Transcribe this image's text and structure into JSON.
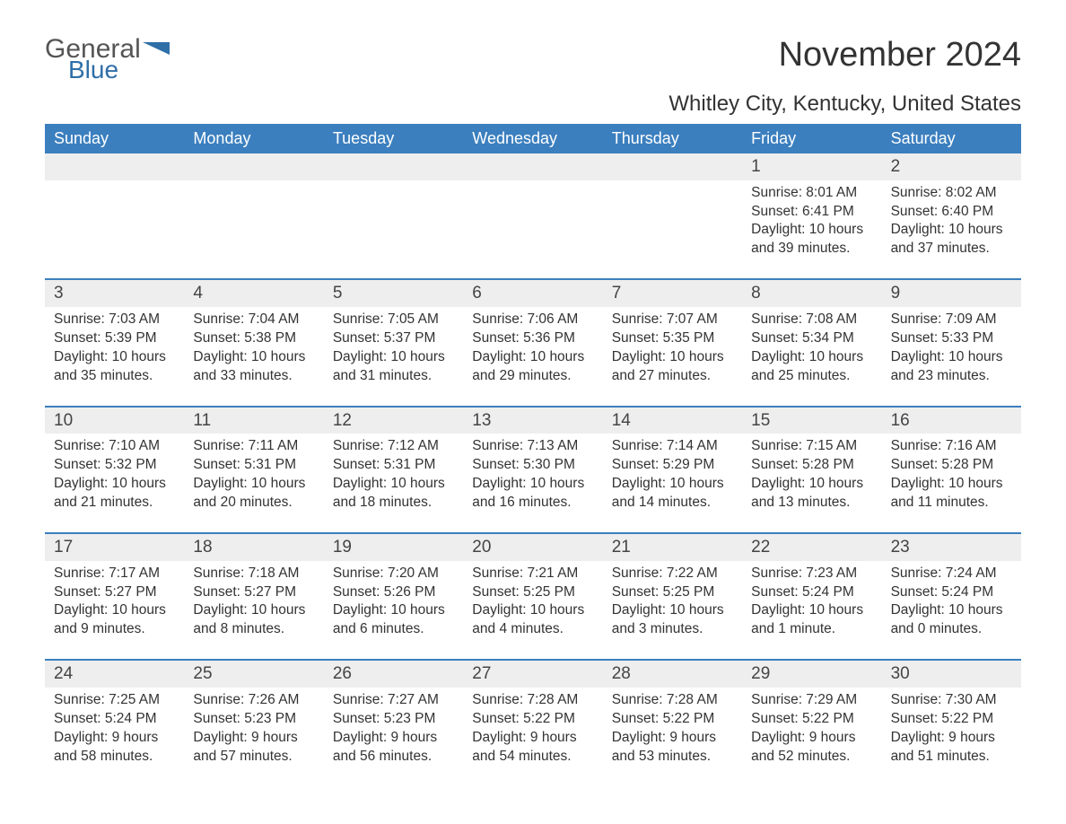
{
  "logo": {
    "word1": "General",
    "word2": "Blue"
  },
  "title": "November 2024",
  "location": "Whitley City, Kentucky, United States",
  "colors": {
    "header_bg": "#3b7fbf",
    "header_text": "#ffffff",
    "brand_blue": "#2f6fa8",
    "text": "#333333",
    "daynum_bg": "#eeeeee",
    "rule": "#3b7fbf"
  },
  "day_headers": [
    "Sunday",
    "Monday",
    "Tuesday",
    "Wednesday",
    "Thursday",
    "Friday",
    "Saturday"
  ],
  "leading_blanks": 5,
  "days": [
    {
      "n": "1",
      "sunrise": "Sunrise: 8:01 AM",
      "sunset": "Sunset: 6:41 PM",
      "daylight1": "Daylight: 10 hours",
      "daylight2": "and 39 minutes."
    },
    {
      "n": "2",
      "sunrise": "Sunrise: 8:02 AM",
      "sunset": "Sunset: 6:40 PM",
      "daylight1": "Daylight: 10 hours",
      "daylight2": "and 37 minutes."
    },
    {
      "n": "3",
      "sunrise": "Sunrise: 7:03 AM",
      "sunset": "Sunset: 5:39 PM",
      "daylight1": "Daylight: 10 hours",
      "daylight2": "and 35 minutes."
    },
    {
      "n": "4",
      "sunrise": "Sunrise: 7:04 AM",
      "sunset": "Sunset: 5:38 PM",
      "daylight1": "Daylight: 10 hours",
      "daylight2": "and 33 minutes."
    },
    {
      "n": "5",
      "sunrise": "Sunrise: 7:05 AM",
      "sunset": "Sunset: 5:37 PM",
      "daylight1": "Daylight: 10 hours",
      "daylight2": "and 31 minutes."
    },
    {
      "n": "6",
      "sunrise": "Sunrise: 7:06 AM",
      "sunset": "Sunset: 5:36 PM",
      "daylight1": "Daylight: 10 hours",
      "daylight2": "and 29 minutes."
    },
    {
      "n": "7",
      "sunrise": "Sunrise: 7:07 AM",
      "sunset": "Sunset: 5:35 PM",
      "daylight1": "Daylight: 10 hours",
      "daylight2": "and 27 minutes."
    },
    {
      "n": "8",
      "sunrise": "Sunrise: 7:08 AM",
      "sunset": "Sunset: 5:34 PM",
      "daylight1": "Daylight: 10 hours",
      "daylight2": "and 25 minutes."
    },
    {
      "n": "9",
      "sunrise": "Sunrise: 7:09 AM",
      "sunset": "Sunset: 5:33 PM",
      "daylight1": "Daylight: 10 hours",
      "daylight2": "and 23 minutes."
    },
    {
      "n": "10",
      "sunrise": "Sunrise: 7:10 AM",
      "sunset": "Sunset: 5:32 PM",
      "daylight1": "Daylight: 10 hours",
      "daylight2": "and 21 minutes."
    },
    {
      "n": "11",
      "sunrise": "Sunrise: 7:11 AM",
      "sunset": "Sunset: 5:31 PM",
      "daylight1": "Daylight: 10 hours",
      "daylight2": "and 20 minutes."
    },
    {
      "n": "12",
      "sunrise": "Sunrise: 7:12 AM",
      "sunset": "Sunset: 5:31 PM",
      "daylight1": "Daylight: 10 hours",
      "daylight2": "and 18 minutes."
    },
    {
      "n": "13",
      "sunrise": "Sunrise: 7:13 AM",
      "sunset": "Sunset: 5:30 PM",
      "daylight1": "Daylight: 10 hours",
      "daylight2": "and 16 minutes."
    },
    {
      "n": "14",
      "sunrise": "Sunrise: 7:14 AM",
      "sunset": "Sunset: 5:29 PM",
      "daylight1": "Daylight: 10 hours",
      "daylight2": "and 14 minutes."
    },
    {
      "n": "15",
      "sunrise": "Sunrise: 7:15 AM",
      "sunset": "Sunset: 5:28 PM",
      "daylight1": "Daylight: 10 hours",
      "daylight2": "and 13 minutes."
    },
    {
      "n": "16",
      "sunrise": "Sunrise: 7:16 AM",
      "sunset": "Sunset: 5:28 PM",
      "daylight1": "Daylight: 10 hours",
      "daylight2": "and 11 minutes."
    },
    {
      "n": "17",
      "sunrise": "Sunrise: 7:17 AM",
      "sunset": "Sunset: 5:27 PM",
      "daylight1": "Daylight: 10 hours",
      "daylight2": "and 9 minutes."
    },
    {
      "n": "18",
      "sunrise": "Sunrise: 7:18 AM",
      "sunset": "Sunset: 5:27 PM",
      "daylight1": "Daylight: 10 hours",
      "daylight2": "and 8 minutes."
    },
    {
      "n": "19",
      "sunrise": "Sunrise: 7:20 AM",
      "sunset": "Sunset: 5:26 PM",
      "daylight1": "Daylight: 10 hours",
      "daylight2": "and 6 minutes."
    },
    {
      "n": "20",
      "sunrise": "Sunrise: 7:21 AM",
      "sunset": "Sunset: 5:25 PM",
      "daylight1": "Daylight: 10 hours",
      "daylight2": "and 4 minutes."
    },
    {
      "n": "21",
      "sunrise": "Sunrise: 7:22 AM",
      "sunset": "Sunset: 5:25 PM",
      "daylight1": "Daylight: 10 hours",
      "daylight2": "and 3 minutes."
    },
    {
      "n": "22",
      "sunrise": "Sunrise: 7:23 AM",
      "sunset": "Sunset: 5:24 PM",
      "daylight1": "Daylight: 10 hours",
      "daylight2": "and 1 minute."
    },
    {
      "n": "23",
      "sunrise": "Sunrise: 7:24 AM",
      "sunset": "Sunset: 5:24 PM",
      "daylight1": "Daylight: 10 hours",
      "daylight2": "and 0 minutes."
    },
    {
      "n": "24",
      "sunrise": "Sunrise: 7:25 AM",
      "sunset": "Sunset: 5:24 PM",
      "daylight1": "Daylight: 9 hours",
      "daylight2": "and 58 minutes."
    },
    {
      "n": "25",
      "sunrise": "Sunrise: 7:26 AM",
      "sunset": "Sunset: 5:23 PM",
      "daylight1": "Daylight: 9 hours",
      "daylight2": "and 57 minutes."
    },
    {
      "n": "26",
      "sunrise": "Sunrise: 7:27 AM",
      "sunset": "Sunset: 5:23 PM",
      "daylight1": "Daylight: 9 hours",
      "daylight2": "and 56 minutes."
    },
    {
      "n": "27",
      "sunrise": "Sunrise: 7:28 AM",
      "sunset": "Sunset: 5:22 PM",
      "daylight1": "Daylight: 9 hours",
      "daylight2": "and 54 minutes."
    },
    {
      "n": "28",
      "sunrise": "Sunrise: 7:28 AM",
      "sunset": "Sunset: 5:22 PM",
      "daylight1": "Daylight: 9 hours",
      "daylight2": "and 53 minutes."
    },
    {
      "n": "29",
      "sunrise": "Sunrise: 7:29 AM",
      "sunset": "Sunset: 5:22 PM",
      "daylight1": "Daylight: 9 hours",
      "daylight2": "and 52 minutes."
    },
    {
      "n": "30",
      "sunrise": "Sunrise: 7:30 AM",
      "sunset": "Sunset: 5:22 PM",
      "daylight1": "Daylight: 9 hours",
      "daylight2": "and 51 minutes."
    }
  ]
}
